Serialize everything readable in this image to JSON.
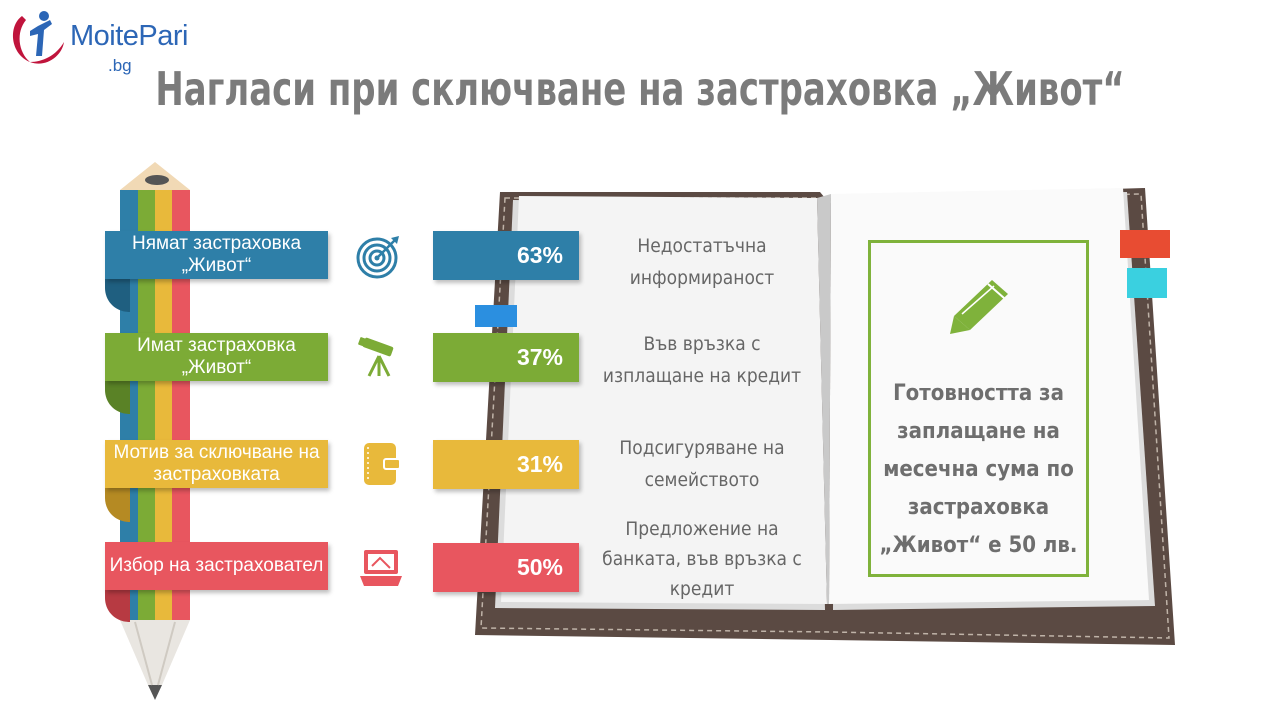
{
  "logo": {
    "name": "MoitePari",
    "suffix": ".bg"
  },
  "title": "Нагласи при сключване на застраховка „Живот“",
  "rows": [
    {
      "label": "Нямат застраховка „Живот“",
      "icon": "target-icon",
      "value": "63%",
      "value_num": 63,
      "description": "Недостатъчна информираност",
      "color": "#2e7fa8"
    },
    {
      "label": "Имат застраховка „Живот“",
      "icon": "telescope-icon",
      "value": "37%",
      "value_num": 37,
      "description": "Във връзка с изплащане на кредит",
      "color": "#7cab36"
    },
    {
      "label": "Мотив за сключване на застраховката",
      "icon": "wallet-icon",
      "value": "31%",
      "value_num": 31,
      "description": "Подсигуряване на семейството",
      "color": "#e8b93b"
    },
    {
      "label": "Избор на застраховател",
      "icon": "laptop-icon",
      "value": "50%",
      "value_num": 50,
      "description": "Предложение на банката, във връзка с кредит",
      "color": "#e8565f"
    }
  ],
  "callout": {
    "icon": "pencil-icon",
    "text": "Готовността за заплащане на месечна сума по застраховка „Живот“ е 50 лв."
  },
  "colors": {
    "title": "#7b7b7b",
    "accent_green": "#7fb23b",
    "logo": "#2c66b6"
  }
}
